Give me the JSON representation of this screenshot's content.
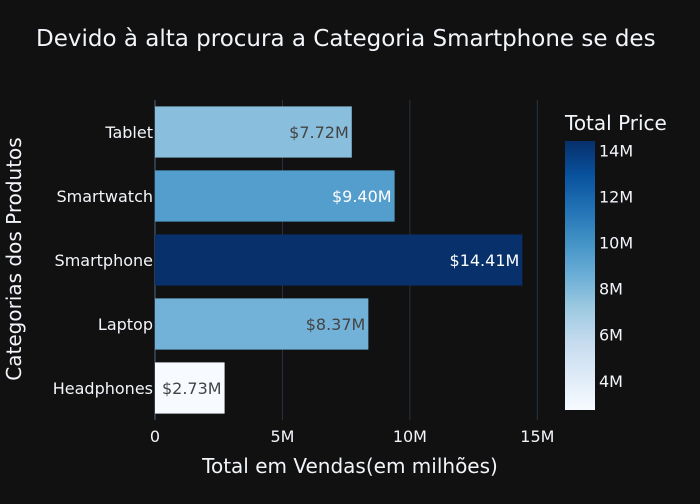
{
  "chart_data": {
    "type": "bar",
    "orientation": "horizontal",
    "title": "Devido à alta procura a Categoria Smartphone se des",
    "xlabel": "Total em Vendas(em milhões)",
    "ylabel": "Categorias dos Produtos",
    "categories": [
      "Headphones",
      "Laptop",
      "Smartphone",
      "Smartwatch",
      "Tablet"
    ],
    "values": [
      2.73,
      8.37,
      14.41,
      9.4,
      7.72
    ],
    "data_labels": [
      "$2.73M",
      "$8.37M",
      "$14.41M",
      "$9.40M",
      "$7.72M"
    ],
    "xlim": [
      0,
      15.3
    ],
    "x_ticks": [
      0,
      5,
      10,
      15
    ],
    "x_tick_labels": [
      "0",
      "5M",
      "10M",
      "15M"
    ],
    "grid": true,
    "colorbar": {
      "title": "Total Price",
      "range": [
        2.73,
        14.41
      ],
      "ticks": [
        4,
        6,
        8,
        10,
        12,
        14
      ],
      "tick_labels": [
        "4M",
        "6M",
        "8M",
        "10M",
        "12M",
        "14M"
      ],
      "colorscale": [
        "#f7fbff",
        "#deebf7",
        "#c6dbef",
        "#9ecae1",
        "#6baed6",
        "#4292c6",
        "#2171b5",
        "#08519c",
        "#08306b"
      ]
    },
    "background": "#111111",
    "grid_color": "#283442",
    "text_color": "#f2f5fa"
  }
}
